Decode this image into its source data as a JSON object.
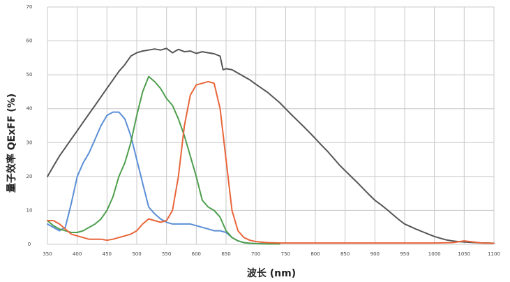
{
  "chart_data": {
    "type": "line",
    "title": "",
    "xlabel": "波长 (nm)",
    "ylabel": "量子效率 QExFF (%)",
    "xlim": [
      350,
      1100
    ],
    "ylim": [
      0,
      70
    ],
    "xticks": [
      350,
      400,
      450,
      500,
      550,
      600,
      650,
      700,
      750,
      800,
      850,
      900,
      950,
      1000,
      1050,
      1100
    ],
    "yticks": [
      0,
      10,
      20,
      30,
      40,
      50,
      60,
      70
    ],
    "grid": true,
    "legend": "none",
    "series": [
      {
        "color": "#555555",
        "x": [
          350,
          360,
          370,
          380,
          390,
          400,
          410,
          420,
          430,
          440,
          450,
          460,
          470,
          480,
          490,
          500,
          510,
          520,
          530,
          540,
          550,
          560,
          570,
          580,
          590,
          600,
          610,
          620,
          630,
          640,
          645,
          650,
          660,
          670,
          680,
          690,
          700,
          710,
          720,
          730,
          740,
          750,
          760,
          770,
          780,
          790,
          800,
          810,
          820,
          830,
          840,
          850,
          860,
          870,
          880,
          890,
          900,
          910,
          920,
          930,
          940,
          950,
          960,
          970,
          980,
          990,
          1000,
          1010,
          1020,
          1030,
          1040,
          1050,
          1060,
          1070,
          1080,
          1090,
          1100
        ],
        "y": [
          20,
          23,
          26,
          28.5,
          31,
          33.5,
          36,
          38.5,
          41,
          43.5,
          46,
          48.5,
          51,
          53,
          55.5,
          56.5,
          57,
          57.3,
          57.6,
          57.3,
          57.8,
          56.5,
          57.5,
          56.8,
          57,
          56.3,
          56.8,
          56.5,
          56.2,
          55.5,
          51.5,
          51.8,
          51.5,
          50.5,
          49.5,
          48.5,
          47.2,
          46,
          44.8,
          43.3,
          41.8,
          40,
          38.2,
          36.5,
          34.8,
          33,
          31.2,
          29.3,
          27.5,
          25.5,
          23.5,
          21.7,
          20,
          18.3,
          16.5,
          14.7,
          13,
          11.7,
          10.3,
          8.8,
          7.3,
          6,
          5.2,
          4.4,
          3.7,
          3,
          2.3,
          1.8,
          1.3,
          1,
          0.8,
          0.7,
          0.6,
          0.5,
          0.4,
          0.4,
          0.3
        ]
      },
      {
        "color": "#5b8ed6",
        "x": [
          350,
          360,
          370,
          380,
          390,
          400,
          410,
          420,
          430,
          440,
          450,
          460,
          470,
          480,
          490,
          500,
          510,
          520,
          530,
          540,
          550,
          560,
          570,
          580,
          590,
          600,
          610,
          620,
          630,
          640,
          650,
          660,
          670,
          680,
          690,
          700,
          710,
          720,
          740
        ],
        "y": [
          6,
          5,
          4,
          5,
          12,
          20,
          24,
          27,
          31,
          35,
          38,
          39,
          39,
          37,
          32,
          25,
          18,
          11,
          9,
          7.5,
          6.5,
          6,
          6,
          6,
          6,
          5.5,
          5,
          4.5,
          4,
          4,
          3.5,
          2,
          1,
          0.5,
          0.3,
          0.2,
          0.2,
          0.1,
          0.1
        ]
      },
      {
        "color": "#4e9e4e",
        "x": [
          350,
          360,
          370,
          380,
          390,
          400,
          410,
          420,
          430,
          440,
          450,
          460,
          470,
          480,
          490,
          500,
          510,
          520,
          530,
          540,
          550,
          560,
          570,
          580,
          590,
          600,
          610,
          620,
          630,
          640,
          650,
          660,
          670,
          680,
          690,
          700,
          720,
          740
        ],
        "y": [
          7,
          5.5,
          4.5,
          4,
          3.5,
          3.5,
          4,
          5,
          6,
          7.5,
          10,
          14,
          20,
          24,
          30,
          38,
          45,
          49.5,
          48,
          46,
          43,
          41,
          37,
          32,
          26,
          20,
          13,
          11,
          10,
          8,
          4,
          2,
          1,
          0.5,
          0.3,
          0.2,
          0.1,
          0.1
        ]
      },
      {
        "color": "#e8653a",
        "x": [
          350,
          360,
          370,
          380,
          390,
          400,
          410,
          420,
          430,
          440,
          450,
          460,
          470,
          480,
          490,
          500,
          510,
          520,
          530,
          540,
          550,
          560,
          570,
          580,
          590,
          600,
          610,
          620,
          630,
          640,
          650,
          660,
          670,
          680,
          690,
          700,
          720,
          740,
          800,
          900,
          1000,
          1030,
          1050,
          1060,
          1070,
          1080,
          1100
        ],
        "y": [
          7,
          7,
          6,
          4.5,
          3,
          2.5,
          2,
          1.5,
          1.5,
          1.5,
          1.2,
          1.5,
          2,
          2.5,
          3,
          4,
          6,
          7.5,
          7,
          6.5,
          7,
          10,
          20,
          35,
          44,
          47,
          47.5,
          48,
          47.5,
          40,
          25,
          10,
          4,
          2,
          1.2,
          0.8,
          0.5,
          0.4,
          0.4,
          0.4,
          0.4,
          0.5,
          1,
          0.8,
          0.6,
          0.4,
          0.3
        ]
      }
    ]
  }
}
